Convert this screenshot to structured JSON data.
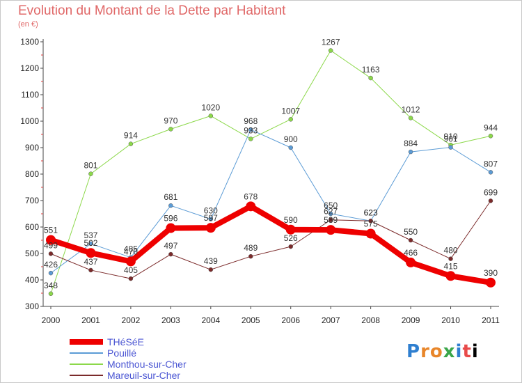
{
  "header": {
    "title": "Evolution du Montant de la Dette par Habitant",
    "subtitle": "(en €)"
  },
  "logo_text": "Proxiti",
  "chart_data": {
    "type": "line",
    "title": "Evolution du Montant de la Dette par Habitant",
    "subtitle": "(en €)",
    "xlabel": "",
    "ylabel": "",
    "categories": [
      "2000",
      "2001",
      "2002",
      "2003",
      "2004",
      "2005",
      "2006",
      "2007",
      "2008",
      "2009",
      "2010",
      "2011"
    ],
    "ylim": [
      300,
      1300
    ],
    "yticks": [
      300,
      400,
      500,
      600,
      700,
      800,
      900,
      1000,
      1100,
      1200,
      1300
    ],
    "grid": false,
    "legend_position": "bottom-left",
    "series": [
      {
        "name": "THéSéE",
        "color": "#ee0000",
        "width": 8,
        "marker": 7,
        "values": [
          551,
          502,
          470,
          596,
          597,
          678,
          590,
          589,
          575,
          466,
          415,
          390
        ],
        "labels": [
          "551",
          "502",
          "470",
          "596",
          "597",
          "678",
          "590",
          "589",
          "575",
          "466",
          "415",
          "390"
        ]
      },
      {
        "name": "Pouillé",
        "color": "#5b9bd5",
        "width": 1,
        "marker": 3,
        "values": [
          426,
          537,
          485,
          681,
          630,
          968,
          900,
          650,
          623,
          884,
          901,
          807
        ],
        "labels": [
          "426",
          "537",
          "485",
          "681",
          "630",
          "968",
          "900",
          "650",
          "623",
          "884",
          "901",
          "807"
        ]
      },
      {
        "name": "Monthou-sur-Cher",
        "color": "#8cd84a",
        "width": 1,
        "marker": 3,
        "values": [
          348,
          801,
          914,
          970,
          1020,
          933,
          1007,
          1267,
          1163,
          1012,
          910,
          944
        ],
        "labels": [
          "348",
          "801",
          "914",
          "970",
          "1020",
          "933",
          "1007",
          "1267",
          "1163",
          "1012",
          "910",
          "944"
        ]
      },
      {
        "name": "Mareuil-sur-Cher",
        "color": "#7b2a2a",
        "width": 1,
        "marker": 3,
        "values": [
          499,
          437,
          405,
          497,
          439,
          489,
          526,
          627,
          623,
          550,
          480,
          699
        ],
        "labels": [
          "499",
          "437",
          "405",
          "497",
          "439",
          "489",
          "526",
          "627",
          "623",
          "550",
          "480",
          "699"
        ]
      }
    ]
  }
}
